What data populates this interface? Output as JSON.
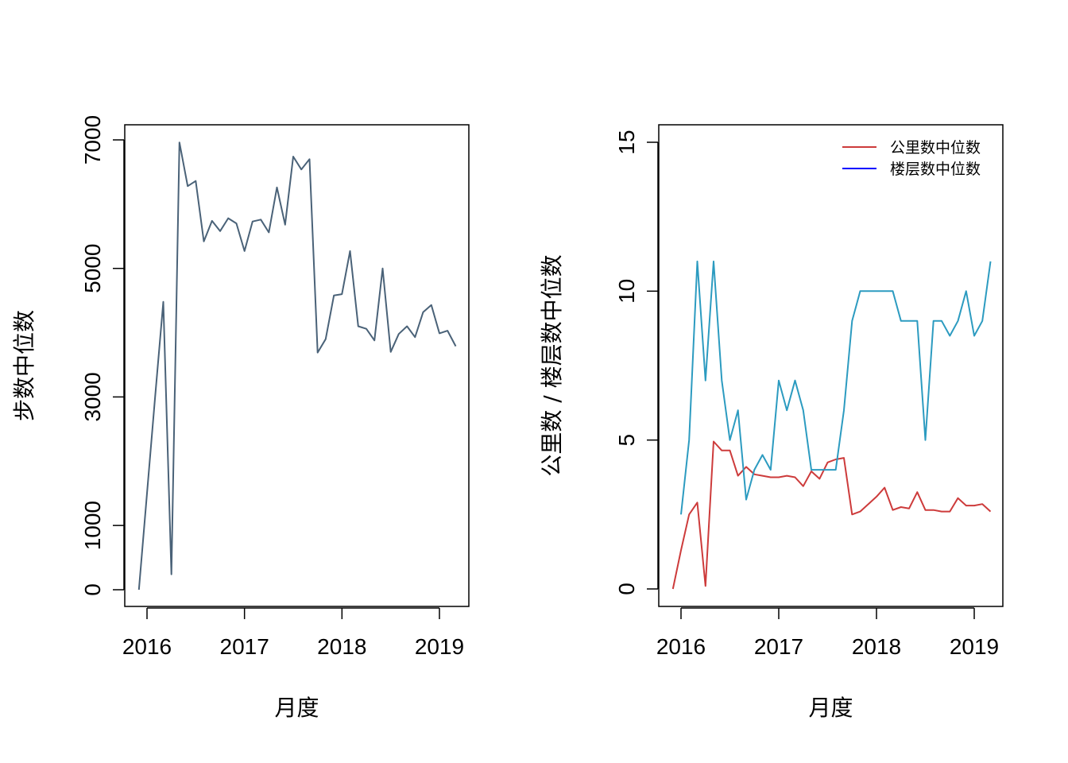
{
  "chart_data": [
    {
      "type": "line",
      "title": "",
      "xlabel": "月度",
      "ylabel": "步数中位数",
      "xlim": [
        2015.9,
        2019.2
      ],
      "ylim": [
        0,
        7000
      ],
      "x_ticks": [
        2016,
        2017,
        2018,
        2019
      ],
      "x_tick_labels": [
        "2016",
        "2017",
        "2018",
        "2019"
      ],
      "y_ticks": [
        0,
        1000,
        3000,
        5000,
        7000
      ],
      "y_tick_labels": [
        "0",
        "1000",
        "3000",
        "5000",
        "7000"
      ],
      "grid": false,
      "series": [
        {
          "color": "#4a6278",
          "x": [
            2015.917,
            2016.0,
            2016.083,
            2016.167,
            2016.25,
            2016.333,
            2016.417,
            2016.5,
            2016.583,
            2016.667,
            2016.75,
            2016.833,
            2016.917,
            2017.0,
            2017.083,
            2017.167,
            2017.25,
            2017.333,
            2017.417,
            2017.5,
            2017.583,
            2017.667,
            2017.75,
            2017.833,
            2017.917,
            2018.0,
            2018.083,
            2018.167,
            2018.25,
            2018.333,
            2018.417,
            2018.5,
            2018.583,
            2018.667,
            2018.75,
            2018.833,
            2018.917,
            2019.0,
            2019.083,
            2019.167
          ],
          "y": [
            0,
            1500,
            3000,
            4480,
            240,
            6960,
            6280,
            6360,
            5420,
            5740,
            5580,
            5780,
            5700,
            5270,
            5730,
            5760,
            5560,
            6260,
            5680,
            6740,
            6540,
            6700,
            3690,
            3900,
            4580,
            4600,
            5270,
            4100,
            4060,
            3880,
            5000,
            3700,
            3980,
            4100,
            3930,
            4320,
            4430,
            3990,
            4030,
            3790
          ]
        }
      ]
    },
    {
      "type": "line",
      "title": "",
      "xlabel": "月度",
      "ylabel": "公里数 / 楼层数中位数",
      "xlim": [
        2015.9,
        2019.2
      ],
      "ylim": [
        0,
        15
      ],
      "x_ticks": [
        2016,
        2017,
        2018,
        2019
      ],
      "x_tick_labels": [
        "2016",
        "2017",
        "2018",
        "2019"
      ],
      "y_ticks": [
        0,
        5,
        10,
        15
      ],
      "y_tick_labels": [
        "0",
        "5",
        "10",
        "15"
      ],
      "grid": false,
      "legend": {
        "position": "top-right",
        "entries": [
          {
            "label": "公里数中位数",
            "color": "#cd3b3b"
          },
          {
            "label": "楼层数中位数",
            "color": "#0000ff"
          }
        ]
      },
      "series": [
        {
          "name": "公里数中位数",
          "color": "#cd3b3b",
          "x": [
            2015.917,
            2016.0,
            2016.083,
            2016.167,
            2016.25,
            2016.333,
            2016.417,
            2016.5,
            2016.583,
            2016.667,
            2016.75,
            2016.833,
            2016.917,
            2017.0,
            2017.083,
            2017.167,
            2017.25,
            2017.333,
            2017.417,
            2017.5,
            2017.583,
            2017.667,
            2017.75,
            2017.833,
            2017.917,
            2018.0,
            2018.083,
            2018.167,
            2018.25,
            2018.333,
            2018.417,
            2018.5,
            2018.583,
            2018.667,
            2018.75,
            2018.833,
            2018.917,
            2019.0,
            2019.083,
            2019.167
          ],
          "y": [
            0.0,
            1.3,
            2.5,
            2.9,
            0.1,
            4.95,
            4.65,
            4.65,
            3.8,
            4.1,
            3.85,
            3.8,
            3.75,
            3.75,
            3.8,
            3.75,
            3.45,
            3.95,
            3.7,
            4.25,
            4.35,
            4.4,
            2.5,
            2.6,
            2.85,
            3.1,
            3.4,
            2.65,
            2.75,
            2.7,
            3.25,
            2.65,
            2.65,
            2.6,
            2.6,
            3.05,
            2.8,
            2.8,
            2.85,
            2.6
          ]
        },
        {
          "name": "",
          "color": "#2c9bc0",
          "x": [
            2016.0,
            2016.083,
            2016.167,
            2016.25,
            2016.333,
            2016.417,
            2016.5,
            2016.583,
            2016.667,
            2016.75,
            2016.833,
            2016.917,
            2017.0,
            2017.083,
            2017.167,
            2017.25,
            2017.333,
            2017.417,
            2017.5,
            2017.583,
            2017.667,
            2017.75,
            2017.833,
            2017.917,
            2018.0,
            2018.083,
            2018.167,
            2018.25,
            2018.333,
            2018.417,
            2018.5,
            2018.583,
            2018.667,
            2018.75,
            2018.833,
            2018.917,
            2019.0,
            2019.083,
            2019.167
          ],
          "y": [
            2.5,
            5,
            11,
            7,
            11,
            7,
            5,
            6,
            3,
            4,
            4.5,
            4,
            7,
            6,
            7,
            6,
            4,
            4,
            4,
            4,
            6,
            9,
            10,
            10,
            10,
            10,
            10,
            9,
            9,
            9,
            5,
            9,
            9,
            8.5,
            9,
            10,
            8.5,
            9,
            11
          ]
        }
      ]
    }
  ]
}
